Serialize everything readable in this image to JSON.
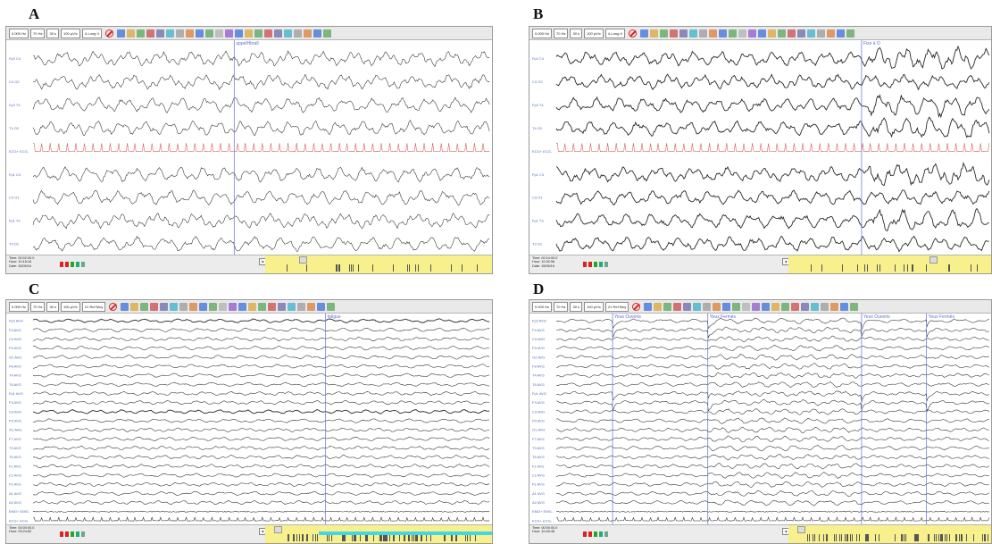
{
  "panels": [
    {
      "label": "A",
      "toolbar": {
        "fields": [
          "0.000 Hz",
          "70 Hz",
          "30 s",
          "100 µV/c",
          "4-Long II"
        ]
      },
      "event": "appelHbrall",
      "channels": [
        "Fp2 C4",
        "C4 O2",
        "Fp2 T4",
        "T4 O2",
        "ECG+ ECG-",
        "Fp1 C3",
        "C3 O1",
        "Fp1 T3",
        "T3 O1"
      ],
      "info": [
        "Time: 00:02:00.0",
        "Hour: 10:15:16",
        "Date: 15/05/16"
      ]
    },
    {
      "label": "B",
      "toolbar": {
        "fields": [
          "0.000 Hz",
          "70 Hz",
          "30 s",
          "100 µV/c",
          "4-Long II"
        ]
      },
      "event": "Fixe à O",
      "channels": [
        "Fp2 C4",
        "C4 O2",
        "Fp2 T4",
        "T4 O2",
        "ECG+ ECG-",
        "Fp1 C3",
        "C3 O1",
        "Fp1 T3",
        "T3 O1"
      ],
      "info": [
        "Time: 00:14:00.0",
        "Hour: 10:32:56",
        "Date: 15/05/16"
      ]
    },
    {
      "label": "C",
      "toolbar": {
        "fields": [
          "0.000 Hz",
          "70 Hz",
          "30 s",
          "100 µV/c",
          "21 Ref Moy"
        ]
      },
      "event": "fatigue",
      "channels": [
        "Fp2 AVG",
        "F4 AVG",
        "C4 AVG",
        "P4 AVG",
        "O2 AVG",
        "F8 AVG",
        "T4 AVG",
        "T6 AVG",
        "Fp1 AVG",
        "F3 AVG",
        "C3 AVG",
        "P3 AVG",
        "O1 AVG",
        "F7 AVG",
        "T3 AVG",
        "T5 AVG",
        "Fz AVG",
        "Cz AVG",
        "Pz AVG",
        "A1 AVG",
        "A2 AVG",
        "EMG+ EMG-",
        "ECG+ ECG-"
      ],
      "info": [
        "Time: 00:00:00.0",
        "Hour: 09:24:52"
      ]
    },
    {
      "label": "D",
      "toolbar": {
        "fields": [
          "0.000 Hz",
          "70 Hz",
          "30 s",
          "100 µV/c",
          "21 Ref Moy"
        ]
      },
      "events": [
        "Yeux Ouverts",
        "Yeux Fermés",
        "Yeux Ouverts",
        "Yeux Fermés"
      ],
      "channels": [
        "Fp2 AVG",
        "F4 AVG",
        "C4 AVG",
        "P4 AVG",
        "O2 AVG",
        "F8 AVG",
        "T4 AVG",
        "T6 AVG",
        "Fp1 AVG",
        "F3 AVG",
        "C3 AVG",
        "P3 AVG",
        "O1 AVG",
        "F7 AVG",
        "T3 AVG",
        "T5 AVG",
        "Fz AVG",
        "Cz AVG",
        "Pz AVG",
        "A1 AVG",
        "A2 AVG",
        "EMG+ EMG-",
        "ECG+ ECG-"
      ],
      "info": [
        "Time: 00:00:00.0",
        "Hour: 10:40:48"
      ]
    }
  ],
  "colors": {
    "trace": "#2a2a2a",
    "ecg": "#d9534f",
    "marker": "#5f6fd6",
    "channel_label": "#4f6fb5",
    "timeline": "#f7f08c",
    "selection": "#3fd8e8"
  },
  "icons": [
    "stop-icon",
    "montage-icons",
    "pen-icons"
  ]
}
